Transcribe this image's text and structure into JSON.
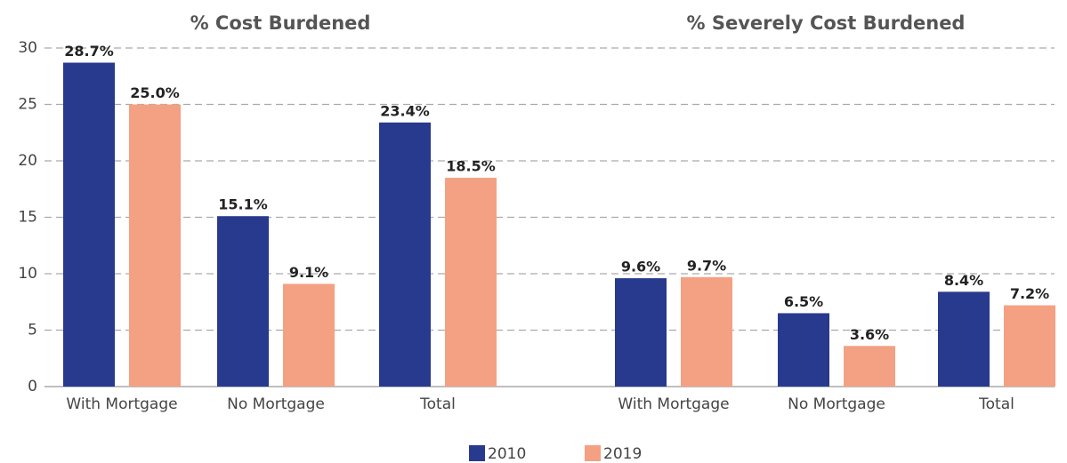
{
  "chart_data": {
    "type": "bar",
    "ylim": [
      0,
      30
    ],
    "yticks": [
      0,
      5,
      10,
      15,
      20,
      25,
      30
    ],
    "grid": true,
    "legend": "bottom",
    "series": [
      {
        "name": "2010",
        "color": "#283a8e"
      },
      {
        "name": "2019",
        "color": "#f4a083"
      }
    ],
    "panels": [
      {
        "title": "% Cost Burdened",
        "categories": [
          "With Mortgage",
          "No Mortgage",
          "Total"
        ],
        "series": [
          {
            "values": [
              28.7,
              15.1,
              23.4
            ],
            "value_labels": [
              "28.7%",
              "15.1%",
              "23.4%"
            ]
          },
          {
            "values": [
              25.0,
              9.1,
              18.5
            ],
            "value_labels": [
              "25.0%",
              "9.1%",
              "18.5%"
            ]
          }
        ]
      },
      {
        "title": "% Severely Cost Burdened",
        "categories": [
          "With Mortgage",
          "No Mortgage",
          "Total"
        ],
        "series": [
          {
            "values": [
              9.6,
              6.5,
              8.4
            ],
            "value_labels": [
              "9.6%",
              "6.5%",
              "8.4%"
            ]
          },
          {
            "values": [
              9.7,
              3.6,
              7.2
            ],
            "value_labels": [
              "9.7%",
              "3.6%",
              "7.2%"
            ]
          }
        ]
      }
    ]
  }
}
